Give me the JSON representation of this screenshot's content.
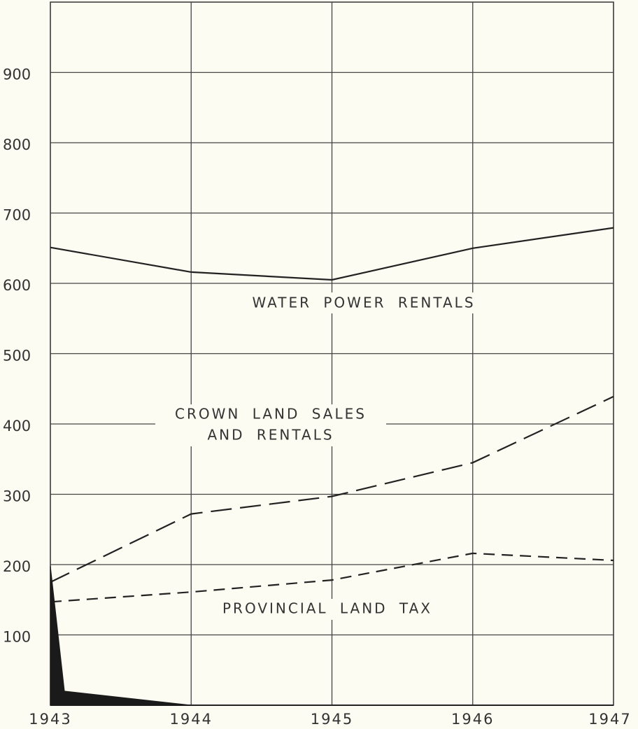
{
  "chart_data": {
    "type": "line",
    "x": [
      1943,
      1944,
      1945,
      1946,
      1947
    ],
    "xlim": [
      1943,
      1947
    ],
    "xticks": [
      1943,
      1944,
      1945,
      1946,
      1947
    ],
    "ylim": [
      0,
      1000
    ],
    "yticks": [
      100,
      200,
      300,
      400,
      500,
      600,
      700,
      800,
      900
    ],
    "grid": true,
    "series": [
      {
        "color": "#222222",
        "line_style": "solid",
        "values": [
          651,
          616,
          605,
          650,
          679
        ]
      },
      {
        "color": "#222222",
        "line_style": "long-dash",
        "values": [
          175,
          272,
          297,
          345,
          439
        ]
      },
      {
        "color": "#222222",
        "line_style": "short-dash",
        "values": [
          147,
          161,
          178,
          216,
          206
        ]
      },
      {
        "color": "#1a1a1a",
        "line_style": "filled-area",
        "x": [
          1943,
          1943.1,
          1944
        ],
        "values": [
          198,
          20,
          0
        ]
      }
    ],
    "annotations": [
      "WATER POWER RENTALS",
      "CROWN LAND SALES",
      "AND RENTALS",
      "PROVINCIAL LAND TAX"
    ]
  }
}
